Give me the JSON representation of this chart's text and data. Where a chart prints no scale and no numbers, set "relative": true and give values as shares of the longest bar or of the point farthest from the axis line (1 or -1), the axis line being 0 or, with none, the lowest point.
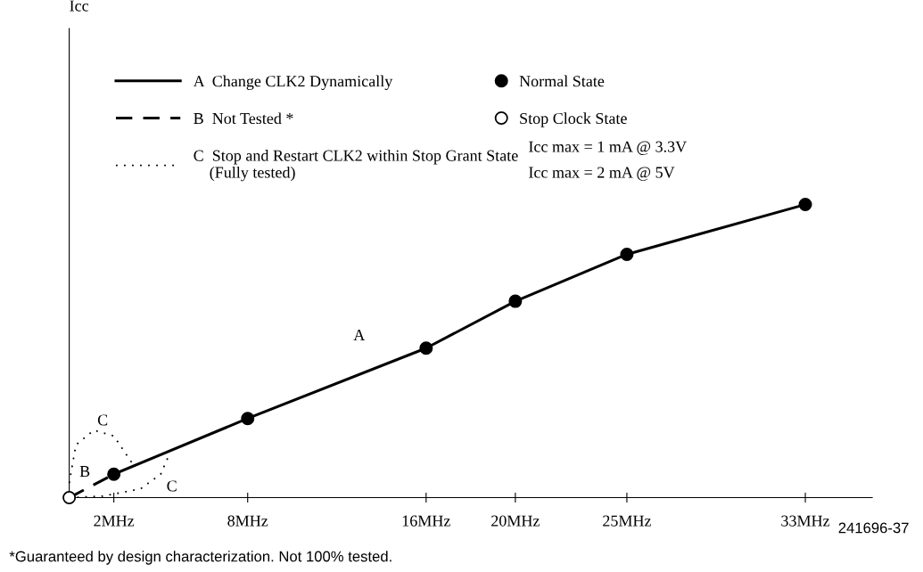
{
  "chart_data": {
    "type": "line",
    "relative": true,
    "xlim": [
      0,
      36
    ],
    "xticks": [
      {
        "value": 2,
        "label": "2MHz"
      },
      {
        "value": 8,
        "label": "8MHz"
      },
      {
        "value": 16,
        "label": "16MHz"
      },
      {
        "value": 20,
        "label": "20MHz"
      },
      {
        "value": 25,
        "label": "25MHz"
      },
      {
        "value": 33,
        "label": "33MHz"
      }
    ],
    "series": [
      {
        "name": "A  Change CLK2 Dynamically",
        "color": "#000000",
        "line_style": "solid",
        "x": [
          2,
          8,
          16,
          20,
          25,
          33
        ],
        "values": [
          0.08,
          0.27,
          0.51,
          0.67,
          0.83,
          1
        ]
      },
      {
        "name": "B  Not Tested *",
        "color": "#000000",
        "line_style": "dashed",
        "x": [
          0,
          2
        ],
        "values": [
          0,
          0.08
        ]
      },
      {
        "name": "C  Stop and Restart CLK2 within Stop Grant State\n    (Fully tested)",
        "color": "#000000",
        "line_style": "dotted",
        "x": [
          0,
          0.3,
          1.1,
          2,
          2.8
        ],
        "values": [
          0.05,
          0.18,
          0.23,
          0.21,
          0.12
        ]
      },
      {
        "color": "#000000",
        "line_style": "dotted",
        "x": [
          0,
          1.5,
          3.2,
          4.1,
          4.5
        ],
        "values": [
          0,
          0.005,
          0.03,
          0.08,
          0.15
        ]
      },
      {
        "name": "Normal State",
        "type": "scatter",
        "color": "#000000",
        "marker": "circle",
        "x": [
          2,
          8,
          16,
          20,
          25,
          33
        ],
        "values": [
          0.08,
          0.27,
          0.51,
          0.67,
          0.83,
          1
        ]
      },
      {
        "name": "Stop Clock State",
        "type": "scatter",
        "color": "#ffffff",
        "marker": "circle",
        "x": [
          0
        ],
        "values": [
          0
        ]
      }
    ],
    "legend": "top left",
    "grid": false,
    "annotations": [
      "Icc",
      "A",
      "B",
      "C",
      "C",
      "Icc max = 1 mA @ 3.3V",
      "Icc max = 2 mA @ 5V",
      "*Guaranteed by design characterization. Not 100% tested.",
      "241696-37"
    ]
  }
}
